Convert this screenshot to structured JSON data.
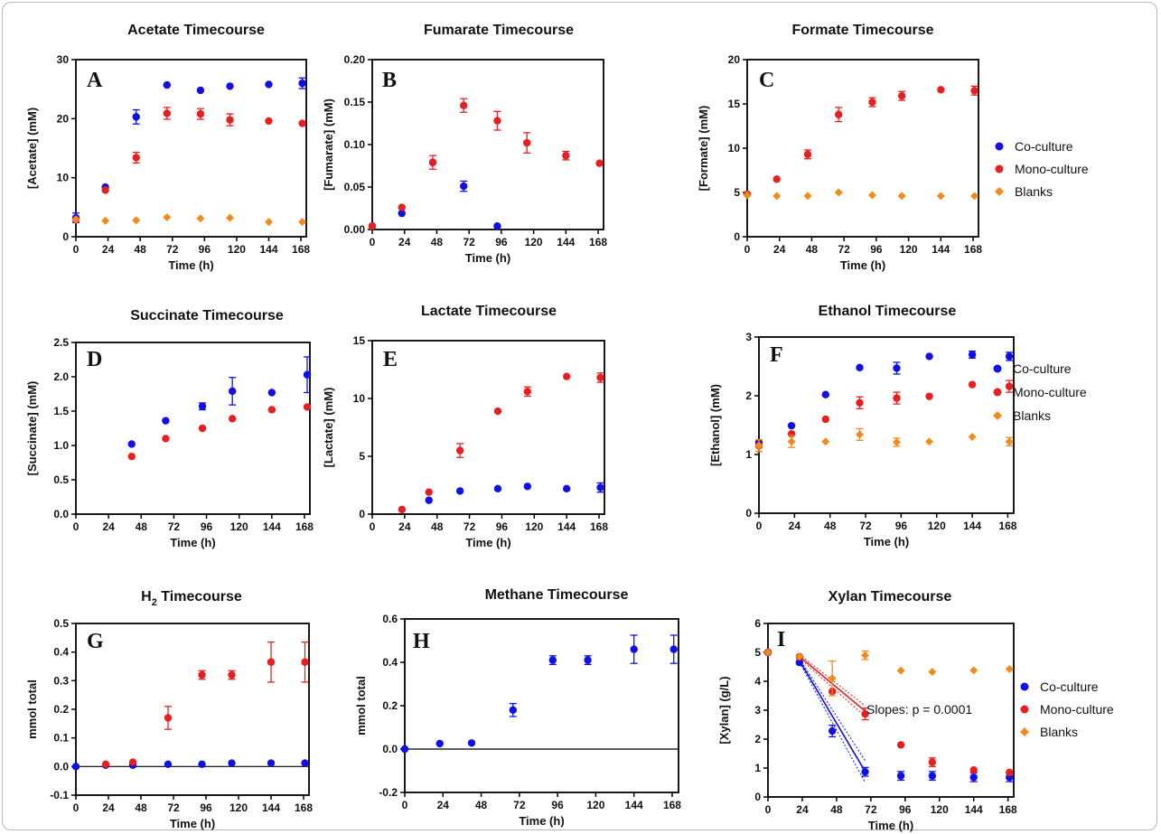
{
  "colors": {
    "co": "#1010e6",
    "mono": "#e62020",
    "blank": "#f08c1e"
  },
  "legends": [
    {
      "items": [
        {
          "key": "co",
          "label": "Co-culture",
          "marker": "circle"
        },
        {
          "key": "mono",
          "label": "Mono-culture",
          "marker": "circle"
        },
        {
          "key": "blank",
          "label": "Blanks",
          "marker": "diamond"
        }
      ]
    },
    {
      "items": [
        {
          "key": "co",
          "label": "Co-culture",
          "marker": "circle"
        },
        {
          "key": "mono",
          "label": "Mono-culture",
          "marker": "circle"
        },
        {
          "key": "blank",
          "label": "Blanks",
          "marker": "diamond"
        }
      ]
    },
    {
      "items": [
        {
          "key": "co",
          "label": "Co-culture",
          "marker": "circle"
        },
        {
          "key": "mono",
          "label": "Mono-culture",
          "marker": "circle"
        },
        {
          "key": "blank",
          "label": "Blanks",
          "marker": "diamond"
        }
      ]
    }
  ],
  "chart_data": [
    {
      "type": "scatter",
      "panel": "A",
      "title": "Acetate Timecourse",
      "ylabel": "[Acetate] (mM)",
      "xlabel": "Time (h)",
      "xlim": [
        0,
        172
      ],
      "ylim": [
        0,
        30
      ],
      "xticks": [
        0,
        24,
        48,
        72,
        96,
        120,
        144,
        168
      ],
      "yticks": [
        0,
        10,
        20,
        30
      ],
      "series": [
        {
          "key": "co",
          "x": [
            0,
            22,
            45,
            68,
            93,
            115,
            144,
            169
          ],
          "y": [
            3.2,
            8.4,
            20.3,
            25.7,
            24.8,
            25.5,
            25.8,
            26.0
          ],
          "err": [
            0.8,
            0,
            1.2,
            0,
            0,
            0,
            0,
            0.9
          ]
        },
        {
          "key": "mono",
          "x": [
            0,
            22,
            45,
            68,
            93,
            115,
            144,
            169
          ],
          "y": [
            2.9,
            7.9,
            13.4,
            20.9,
            20.8,
            19.8,
            19.6,
            19.2
          ],
          "err": [
            0,
            0,
            0.9,
            1.0,
            0.9,
            1.0,
            0,
            0
          ]
        },
        {
          "key": "blank",
          "x": [
            0,
            22,
            45,
            68,
            93,
            115,
            144,
            169
          ],
          "y": [
            2.9,
            2.7,
            2.8,
            3.3,
            3.1,
            3.2,
            2.5,
            2.5
          ],
          "err": [
            0,
            0,
            0,
            0,
            0,
            0,
            0,
            0
          ]
        }
      ]
    },
    {
      "type": "scatter",
      "panel": "B",
      "title": "Fumarate Timecourse",
      "ylabel": "[Fumarate] (mM)",
      "xlabel": "Time (h)",
      "xlim": [
        0,
        172
      ],
      "ylim": [
        0,
        0.2
      ],
      "xticks": [
        0,
        24,
        48,
        72,
        96,
        120,
        144,
        168
      ],
      "yticks": [
        0,
        0.05,
        0.1,
        0.15,
        0.2
      ],
      "yticklabels": [
        "0.00",
        "0.05",
        "0.10",
        "0.15",
        "0.20"
      ],
      "series": [
        {
          "key": "co",
          "x": [
            0,
            22,
            45,
            68,
            93
          ],
          "y": [
            0.004,
            0.019,
            0.079,
            0.051,
            0.004
          ],
          "err": [
            0,
            0,
            0,
            0.006,
            0
          ]
        },
        {
          "key": "mono",
          "x": [
            0,
            22,
            45,
            68,
            93,
            115,
            144,
            169
          ],
          "y": [
            0.004,
            0.026,
            0.079,
            0.146,
            0.128,
            0.102,
            0.087,
            0.078
          ],
          "err": [
            0,
            0,
            0.008,
            0.008,
            0.011,
            0.012,
            0.005,
            0
          ]
        }
      ]
    },
    {
      "type": "scatter",
      "panel": "C",
      "title": "Formate Timecourse",
      "ylabel": "[Formate] (mM)",
      "xlabel": "Time (h)",
      "xlim": [
        0,
        172
      ],
      "ylim": [
        0,
        20
      ],
      "xticks": [
        0,
        24,
        48,
        72,
        96,
        120,
        144,
        168
      ],
      "yticks": [
        0,
        5,
        10,
        15,
        20
      ],
      "series": [
        {
          "key": "mono",
          "x": [
            0,
            22,
            45,
            68,
            93,
            115,
            144,
            169
          ],
          "y": [
            4.8,
            6.5,
            9.3,
            13.8,
            15.2,
            15.9,
            16.6,
            16.5
          ],
          "err": [
            0,
            0,
            0.5,
            0.8,
            0.5,
            0.5,
            0,
            0.5
          ]
        },
        {
          "key": "blank",
          "x": [
            0,
            22,
            45,
            68,
            93,
            115,
            144,
            169
          ],
          "y": [
            4.7,
            4.6,
            4.6,
            5.0,
            4.7,
            4.6,
            4.6,
            4.6
          ],
          "err": [
            0,
            0,
            0,
            0,
            0,
            0,
            0,
            0
          ]
        }
      ]
    },
    {
      "type": "scatter",
      "panel": "D",
      "title": "Succinate Timecourse",
      "ylabel": "[Succinate] (mM)",
      "xlabel": "Time (h)",
      "xlim": [
        0,
        172
      ],
      "ylim": [
        0,
        2.5
      ],
      "xticks": [
        0,
        24,
        48,
        72,
        96,
        120,
        144,
        168
      ],
      "yticks": [
        0,
        0.5,
        1.0,
        1.5,
        2.0,
        2.5
      ],
      "yticklabels": [
        "0.0",
        "0.5",
        "1.0",
        "1.5",
        "2.0",
        "2.5"
      ],
      "series": [
        {
          "key": "co",
          "x": [
            41,
            66,
            93,
            115,
            144,
            170
          ],
          "y": [
            1.02,
            1.36,
            1.57,
            1.79,
            1.77,
            2.03
          ],
          "err": [
            0,
            0,
            0.05,
            0.2,
            0,
            0.26
          ]
        },
        {
          "key": "mono",
          "x": [
            41,
            66,
            93,
            115,
            144,
            170
          ],
          "y": [
            0.84,
            1.1,
            1.25,
            1.39,
            1.52,
            1.56
          ],
          "err": [
            0,
            0,
            0,
            0,
            0,
            0
          ]
        }
      ]
    },
    {
      "type": "scatter",
      "panel": "E",
      "title": "Lactate Timecourse",
      "ylabel": "[Lactate] (mM)",
      "xlabel": "Time (h)",
      "xlim": [
        0,
        172
      ],
      "ylim": [
        0,
        15
      ],
      "xticks": [
        0,
        24,
        48,
        72,
        96,
        120,
        144,
        168
      ],
      "yticks": [
        0,
        5,
        10,
        15
      ],
      "series": [
        {
          "key": "co",
          "x": [
            42,
            65,
            93,
            115,
            144,
            169
          ],
          "y": [
            1.2,
            2.0,
            2.2,
            2.4,
            2.2,
            2.3
          ],
          "err": [
            0,
            0,
            0,
            0,
            0,
            0.4
          ]
        },
        {
          "key": "mono",
          "x": [
            22,
            42,
            65,
            93,
            115,
            144,
            169
          ],
          "y": [
            0.4,
            1.9,
            5.5,
            8.9,
            10.6,
            11.9,
            11.8
          ],
          "err": [
            0,
            0,
            0.6,
            0,
            0.4,
            0,
            0.4
          ]
        }
      ]
    },
    {
      "type": "scatter",
      "panel": "F",
      "title": "Ethanol Timecourse",
      "ylabel": "[Ethanol] (mM)",
      "xlabel": "Time (h)",
      "xlim": [
        0,
        172
      ],
      "ylim": [
        0,
        3
      ],
      "xticks": [
        0,
        24,
        48,
        72,
        96,
        120,
        144,
        168
      ],
      "yticks": [
        0,
        1,
        2,
        3
      ],
      "series": [
        {
          "key": "co",
          "x": [
            0,
            22,
            45,
            68,
            93,
            115,
            144,
            169
          ],
          "y": [
            1.2,
            1.49,
            2.02,
            2.48,
            2.47,
            2.67,
            2.7,
            2.67
          ],
          "err": [
            0,
            0,
            0,
            0,
            0.1,
            0,
            0.06,
            0.07
          ]
        },
        {
          "key": "mono",
          "x": [
            0,
            22,
            45,
            68,
            93,
            115,
            144,
            169
          ],
          "y": [
            1.15,
            1.35,
            1.6,
            1.88,
            1.96,
            1.99,
            2.19,
            2.16
          ],
          "err": [
            0.1,
            0,
            0,
            0.1,
            0.1,
            0,
            0,
            0.1
          ]
        },
        {
          "key": "blank",
          "x": [
            0,
            22,
            45,
            68,
            93,
            115,
            144,
            169
          ],
          "y": [
            1.15,
            1.22,
            1.22,
            1.34,
            1.21,
            1.22,
            1.3,
            1.22
          ],
          "err": [
            0.1,
            0.1,
            0,
            0.1,
            0.07,
            0,
            0,
            0.07
          ]
        }
      ]
    },
    {
      "type": "scatter",
      "panel": "G",
      "title": "H",
      "title_sub": "2",
      "title_rest": " Timecourse",
      "ylabel": "mmol total",
      "xlabel": "Time (h)",
      "xlim": [
        0,
        172
      ],
      "ylim": [
        -0.1,
        0.5
      ],
      "xticks": [
        0,
        24,
        48,
        72,
        96,
        120,
        144,
        168
      ],
      "yticks": [
        -0.1,
        0.0,
        0.1,
        0.2,
        0.3,
        0.4,
        0.5
      ],
      "yticklabels": [
        "-0.1",
        "0.0",
        "0.1",
        "0.2",
        "0.3",
        "0.4",
        "0.5"
      ],
      "series": [
        {
          "key": "co",
          "x": [
            0,
            22,
            42,
            68,
            93,
            115,
            144,
            169
          ],
          "y": [
            0.0,
            0.005,
            0.005,
            0.008,
            0.008,
            0.012,
            0.012,
            0.012
          ],
          "err": [
            0,
            0,
            0,
            0,
            0,
            0,
            0,
            0
          ]
        },
        {
          "key": "mono",
          "x": [
            22,
            42,
            68,
            93,
            115,
            144,
            169
          ],
          "y": [
            0.008,
            0.015,
            0.17,
            0.32,
            0.32,
            0.365,
            0.365
          ],
          "err": [
            0,
            0,
            0.04,
            0.015,
            0.015,
            0.07,
            0.07
          ]
        }
      ]
    },
    {
      "type": "scatter",
      "panel": "H",
      "title": "Methane Timecourse",
      "ylabel": "mmol total",
      "xlabel": "Time (h)",
      "xlim": [
        0,
        172
      ],
      "ylim": [
        -0.2,
        0.6
      ],
      "xticks": [
        0,
        24,
        48,
        72,
        96,
        120,
        144,
        168
      ],
      "yticks": [
        -0.2,
        0.0,
        0.2,
        0.4,
        0.6
      ],
      "yticklabels": [
        "-0.2",
        "0.0",
        "0.2",
        "0.4",
        "0.6"
      ],
      "series": [
        {
          "key": "co",
          "x": [
            0,
            22,
            42,
            68,
            93,
            115,
            144,
            169
          ],
          "y": [
            0.0,
            0.025,
            0.028,
            0.18,
            0.41,
            0.41,
            0.46,
            0.46
          ],
          "err": [
            0,
            0,
            0,
            0.03,
            0.02,
            0.02,
            0.065,
            0.065
          ]
        }
      ]
    },
    {
      "type": "scatter",
      "panel": "I",
      "title": "Xylan Timecourse",
      "ylabel": "[Xylan] (g/L)",
      "xlabel": "Time (h)",
      "xlim": [
        0,
        172
      ],
      "ylim": [
        0,
        6
      ],
      "xticks": [
        0,
        24,
        48,
        72,
        96,
        120,
        144,
        168
      ],
      "yticks": [
        0,
        1,
        2,
        3,
        4,
        5,
        6
      ],
      "annotation": "Slopes: p = 0.0001",
      "series": [
        {
          "key": "co",
          "x": [
            0,
            22,
            45,
            68,
            93,
            115,
            144,
            169
          ],
          "y": [
            5.0,
            4.65,
            2.28,
            0.87,
            0.73,
            0.73,
            0.68,
            0.68
          ],
          "err": [
            0,
            0,
            0.2,
            0.15,
            0.15,
            0.15,
            0.15,
            0.15
          ]
        },
        {
          "key": "mono",
          "x": [
            0,
            22,
            45,
            68,
            93,
            115,
            144,
            169
          ],
          "y": [
            5.0,
            4.85,
            3.65,
            2.87,
            1.8,
            1.2,
            0.93,
            0.85
          ],
          "err": [
            0,
            0,
            0,
            0.2,
            0,
            0.15,
            0,
            0
          ]
        },
        {
          "key": "blank",
          "x": [
            0,
            22,
            45,
            68,
            93,
            115,
            144,
            169
          ],
          "y": [
            5.0,
            4.85,
            4.1,
            4.9,
            4.37,
            4.33,
            4.38,
            4.42
          ],
          "err": [
            0,
            0,
            0.6,
            0.15,
            0,
            0,
            0,
            0
          ]
        }
      ],
      "fits": [
        {
          "key": "co",
          "x": [
            22,
            68
          ],
          "y": [
            4.72,
            0.88
          ]
        },
        {
          "key": "mono",
          "x": [
            22,
            68
          ],
          "y": [
            4.86,
            2.97
          ]
        }
      ]
    }
  ]
}
